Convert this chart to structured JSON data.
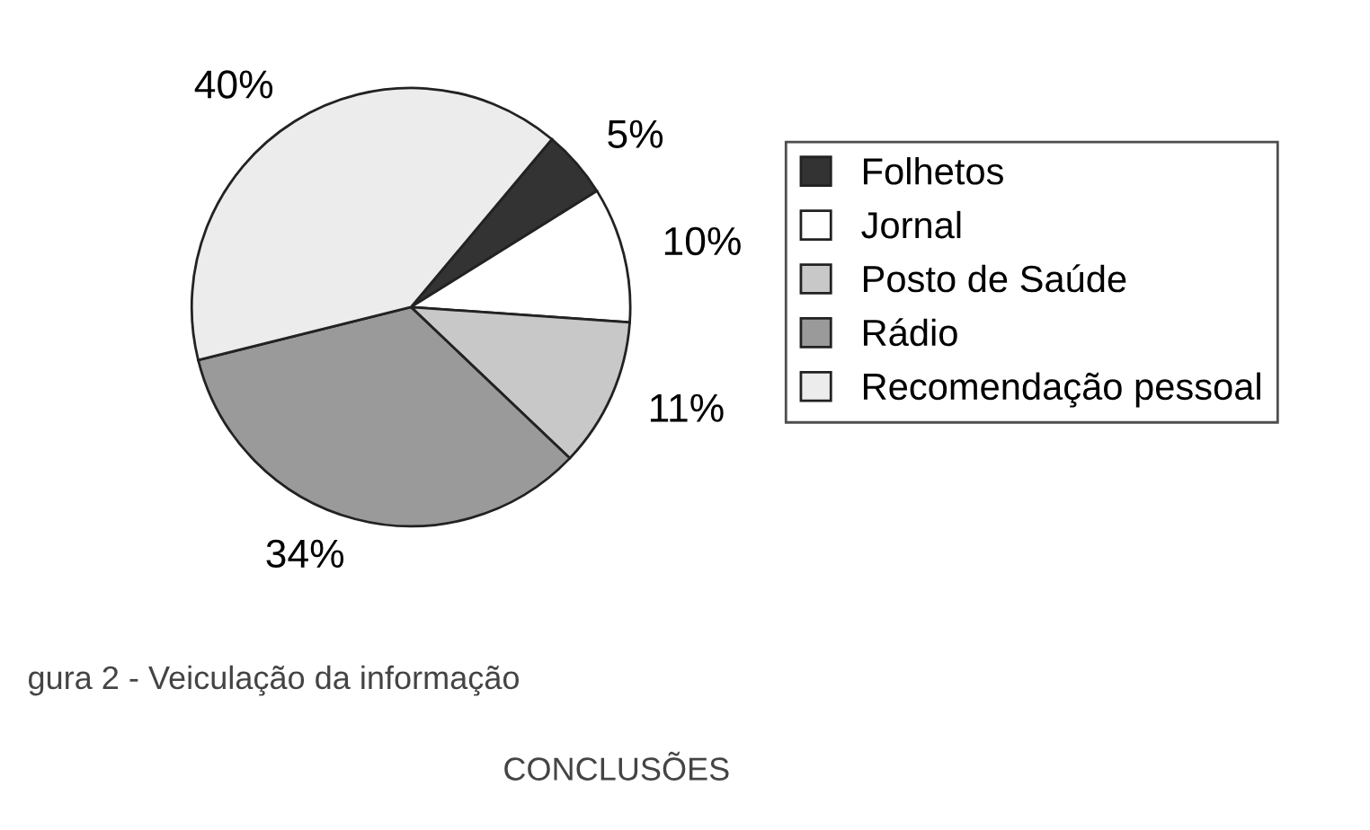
{
  "chart_data": {
    "type": "pie",
    "categories": [
      "Folhetos",
      "Jornal",
      "Posto de Saúde",
      "Rádio",
      "Recomendação pessoal"
    ],
    "values": [
      5,
      10,
      11,
      34,
      40
    ],
    "value_labels": [
      "5%",
      "10%",
      "11%",
      "34%",
      "40%"
    ],
    "colors": [
      "#333333",
      "#ffffff",
      "#c8c8c8",
      "#9a9a9a",
      "#ececec"
    ],
    "legend": "right",
    "annotations": [
      "gura 2 - Veiculação da informação",
      "CONCLUSÕES"
    ]
  }
}
